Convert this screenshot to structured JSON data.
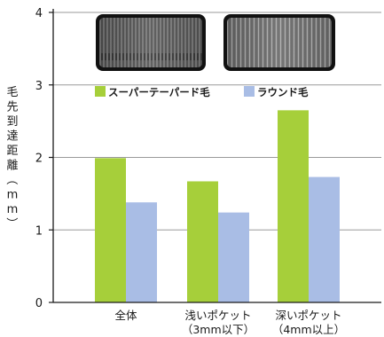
{
  "chart_data": {
    "type": "bar",
    "title": "",
    "ylabel": "毛先到達距離（mm）",
    "ylim": [
      0,
      4
    ],
    "yticks": [
      0,
      1,
      2,
      3,
      4
    ],
    "grid": true,
    "legend": "top-center",
    "categories": [
      {
        "line1": "全体",
        "line2": ""
      },
      {
        "line1": "浅いポケット",
        "line2": "（3mm以下）"
      },
      {
        "line1": "深いポケット",
        "line2": "（4mm以上）"
      }
    ],
    "series": [
      {
        "name": "スーパーテーパード毛",
        "color": "#a6cf3a",
        "values": [
          1.99,
          1.67,
          2.65
        ]
      },
      {
        "name": "ラウンド毛",
        "color": "#a9bde5",
        "values": [
          1.38,
          1.24,
          1.73
        ]
      }
    ]
  },
  "photos": [
    {
      "icon": "bristle-photo-tapered"
    },
    {
      "icon": "bristle-photo-round"
    }
  ]
}
